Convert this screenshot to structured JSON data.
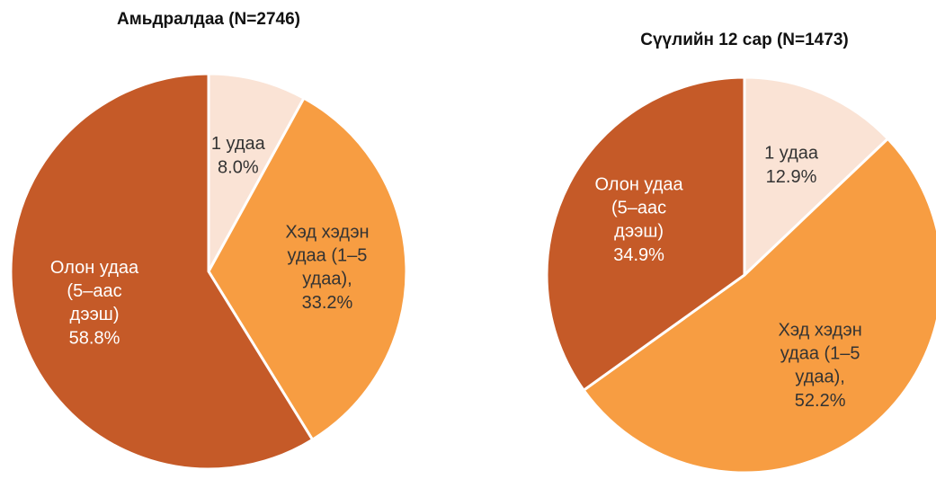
{
  "chart_data": [
    {
      "type": "pie",
      "title": "Амьдралдаа (N=2746)",
      "categories": [
        "1 удаа",
        "Хэд хэдэн удаа (1–5 удаа),",
        "Олон удаа (5–аас дээш)"
      ],
      "values": [
        8.0,
        33.2,
        58.8
      ],
      "value_labels": [
        "8.0%",
        "33.2%",
        "58.8%"
      ],
      "colors": [
        "#fae3d5",
        "#f79d42",
        "#c55a28"
      ]
    },
    {
      "type": "pie",
      "title": "Сүүлийн 12 сар (N=1473)",
      "categories": [
        "1 удаа",
        "Хэд хэдэн удаа (1–5 удаа),",
        "Олон удаа (5–аас дээш)"
      ],
      "values": [
        12.9,
        52.2,
        34.9
      ],
      "value_labels": [
        "12.9%",
        "52.2%",
        "34.9%"
      ],
      "colors": [
        "#fae3d5",
        "#f79d42",
        "#c55a28"
      ]
    }
  ]
}
